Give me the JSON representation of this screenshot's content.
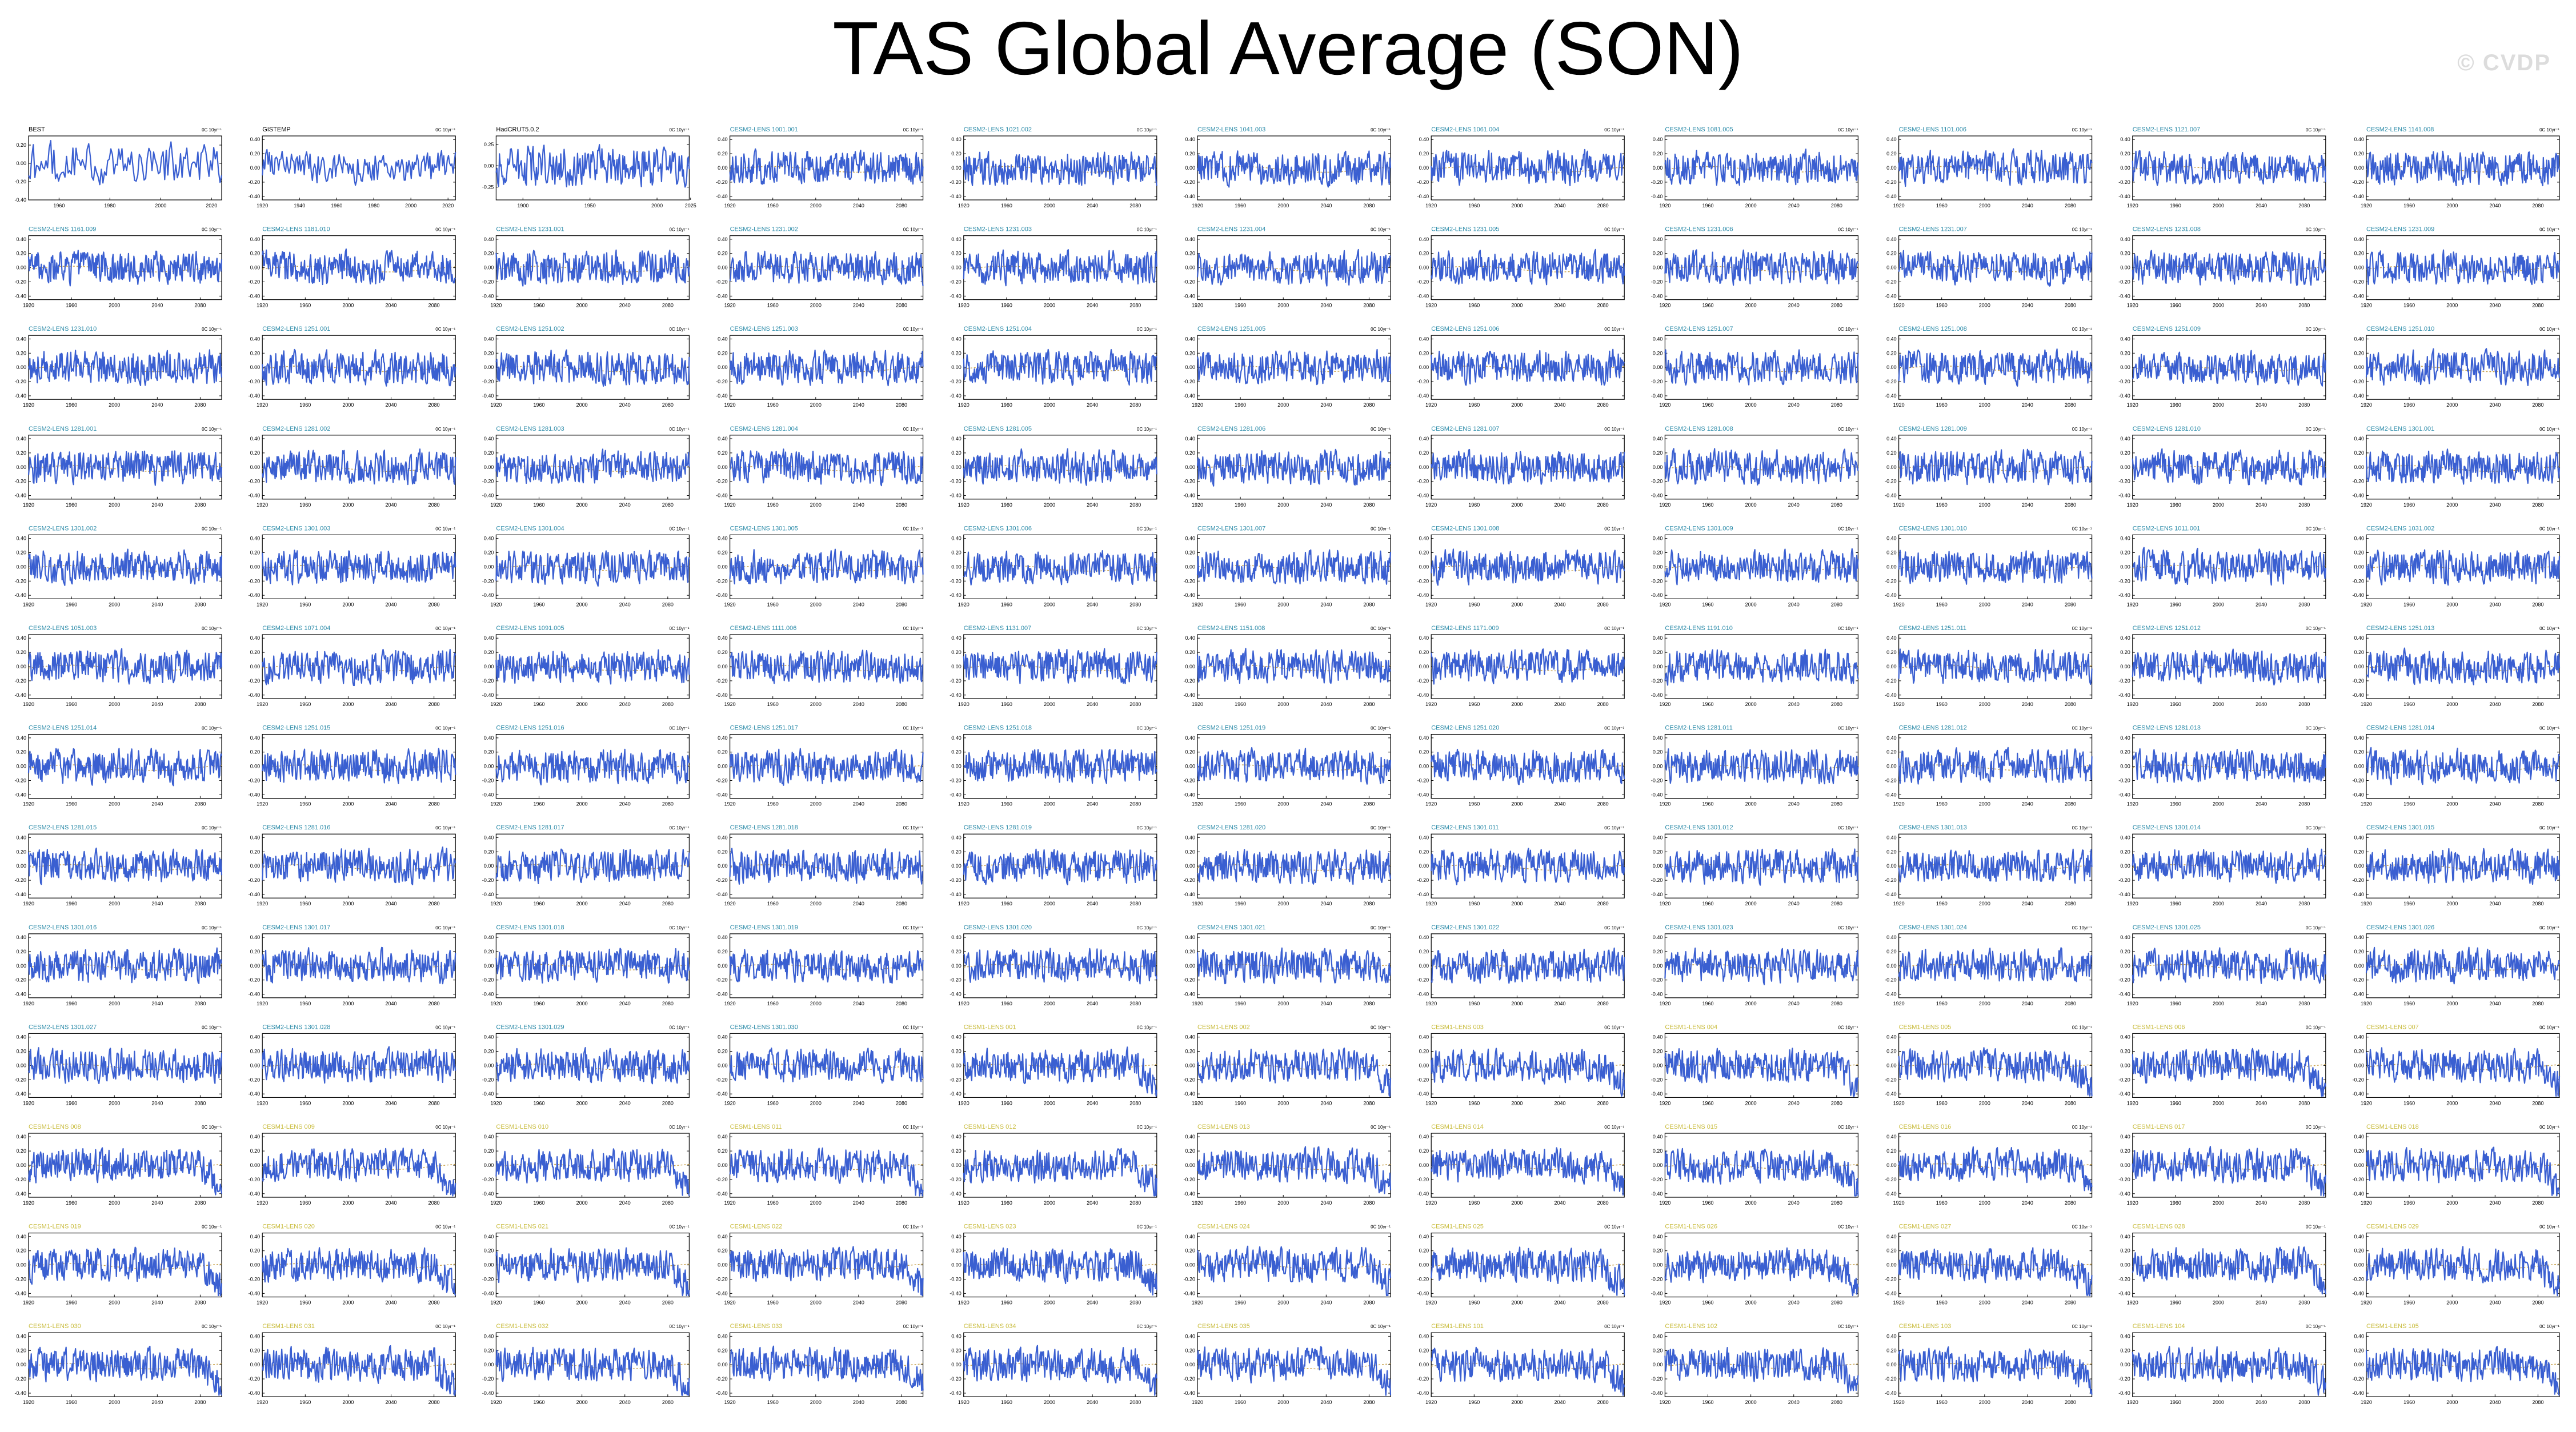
{
  "title": "TAS Global Average (SON)",
  "watermark": "© CVDP",
  "colors": {
    "line": "#3a5fd1",
    "trend": "#c8a14a",
    "frame": "#000000",
    "obs_label": "#000000",
    "lens_label": "#2a8aa8",
    "lens1_label": "#c8bb3a"
  },
  "chart_data": {
    "type": "line",
    "panel_unit": "0C 10yr⁻¹",
    "panels": [
      {
        "name": "BEST",
        "y_ticks": [
          -0.4,
          -0.2,
          0.0,
          0.2
        ],
        "x_ticks": [
          1960,
          1980,
          2000,
          2020
        ],
        "xlim": [
          1948,
          2024
        ],
        "ylim": [
          -0.4,
          0.3
        ],
        "label_color": "obs_label",
        "trend": false
      },
      {
        "name": "GISTEMP",
        "y_ticks": [
          -0.4,
          -0.2,
          0.0,
          0.2,
          0.4
        ],
        "x_ticks": [
          1920,
          1940,
          1960,
          1980,
          2000,
          2020
        ],
        "xlim": [
          1920,
          2024
        ],
        "ylim": [
          -0.45,
          0.45
        ],
        "label_color": "obs_label",
        "trend": false
      },
      {
        "name": "HadCRUT5.0.2",
        "y_ticks": [
          -0.25,
          0.0,
          0.25
        ],
        "x_ticks": [
          1900,
          1950,
          2000,
          2025
        ],
        "xlim": [
          1880,
          2024
        ],
        "ylim": [
          -0.4,
          0.35
        ],
        "label_color": "obs_label",
        "trend": false
      },
      {
        "name": "CESM2-LENS 1001.001"
      },
      {
        "name": "CESM2-LENS 1021.002"
      },
      {
        "name": "CESM2-LENS 1041.003"
      },
      {
        "name": "CESM2-LENS 1061.004"
      },
      {
        "name": "CESM2-LENS 1081.005"
      },
      {
        "name": "CESM2-LENS 1101.006"
      },
      {
        "name": "CESM2-LENS 1121.007"
      },
      {
        "name": "CESM2-LENS 1141.008"
      },
      {
        "name": "CESM2-LENS 1161.009"
      },
      {
        "name": "CESM2-LENS 1181.010"
      },
      {
        "name": "CESM2-LENS 1231.001"
      },
      {
        "name": "CESM2-LENS 1231.002"
      },
      {
        "name": "CESM2-LENS 1231.003"
      },
      {
        "name": "CESM2-LENS 1231.004"
      },
      {
        "name": "CESM2-LENS 1231.005"
      },
      {
        "name": "CESM2-LENS 1231.006"
      },
      {
        "name": "CESM2-LENS 1231.007"
      },
      {
        "name": "CESM2-LENS 1231.008"
      },
      {
        "name": "CESM2-LENS 1231.009"
      },
      {
        "name": "CESM2-LENS 1231.010"
      },
      {
        "name": "CESM2-LENS 1251.001"
      },
      {
        "name": "CESM2-LENS 1251.002"
      },
      {
        "name": "CESM2-LENS 1251.003"
      },
      {
        "name": "CESM2-LENS 1251.004"
      },
      {
        "name": "CESM2-LENS 1251.005"
      },
      {
        "name": "CESM2-LENS 1251.006"
      },
      {
        "name": "CESM2-LENS 1251.007"
      },
      {
        "name": "CESM2-LENS 1251.008"
      },
      {
        "name": "CESM2-LENS 1251.009"
      },
      {
        "name": "CESM2-LENS 1251.010"
      },
      {
        "name": "CESM2-LENS 1281.001"
      },
      {
        "name": "CESM2-LENS 1281.002"
      },
      {
        "name": "CESM2-LENS 1281.003"
      },
      {
        "name": "CESM2-LENS 1281.004"
      },
      {
        "name": "CESM2-LENS 1281.005"
      },
      {
        "name": "CESM2-LENS 1281.006"
      },
      {
        "name": "CESM2-LENS 1281.007"
      },
      {
        "name": "CESM2-LENS 1281.008"
      },
      {
        "name": "CESM2-LENS 1281.009"
      },
      {
        "name": "CESM2-LENS 1281.010"
      },
      {
        "name": "CESM2-LENS 1301.001"
      },
      {
        "name": "CESM2-LENS 1301.002"
      },
      {
        "name": "CESM2-LENS 1301.003"
      },
      {
        "name": "CESM2-LENS 1301.004"
      },
      {
        "name": "CESM2-LENS 1301.005"
      },
      {
        "name": "CESM2-LENS 1301.006"
      },
      {
        "name": "CESM2-LENS 1301.007"
      },
      {
        "name": "CESM2-LENS 1301.008"
      },
      {
        "name": "CESM2-LENS 1301.009"
      },
      {
        "name": "CESM2-LENS 1301.010"
      },
      {
        "name": "CESM2-LENS 1011.001"
      },
      {
        "name": "CESM2-LENS 1031.002"
      },
      {
        "name": "CESM2-LENS 1051.003"
      },
      {
        "name": "CESM2-LENS 1071.004"
      },
      {
        "name": "CESM2-LENS 1091.005"
      },
      {
        "name": "CESM2-LENS 1111.006"
      },
      {
        "name": "CESM2-LENS 1131.007"
      },
      {
        "name": "CESM2-LENS 1151.008"
      },
      {
        "name": "CESM2-LENS 1171.009"
      },
      {
        "name": "CESM2-LENS 1191.010"
      },
      {
        "name": "CESM2-LENS 1251.011"
      },
      {
        "name": "CESM2-LENS 1251.012"
      },
      {
        "name": "CESM2-LENS 1251.013"
      },
      {
        "name": "CESM2-LENS 1251.014"
      },
      {
        "name": "CESM2-LENS 1251.015"
      },
      {
        "name": "CESM2-LENS 1251.016"
      },
      {
        "name": "CESM2-LENS 1251.017"
      },
      {
        "name": "CESM2-LENS 1251.018"
      },
      {
        "name": "CESM2-LENS 1251.019"
      },
      {
        "name": "CESM2-LENS 1251.020"
      },
      {
        "name": "CESM2-LENS 1281.011"
      },
      {
        "name": "CESM2-LENS 1281.012"
      },
      {
        "name": "CESM2-LENS 1281.013"
      },
      {
        "name": "CESM2-LENS 1281.014"
      },
      {
        "name": "CESM2-LENS 1281.015"
      },
      {
        "name": "CESM2-LENS 1281.016"
      },
      {
        "name": "CESM2-LENS 1281.017"
      },
      {
        "name": "CESM2-LENS 1281.018"
      },
      {
        "name": "CESM2-LENS 1281.019"
      },
      {
        "name": "CESM2-LENS 1281.020"
      },
      {
        "name": "CESM2-LENS 1301.011"
      },
      {
        "name": "CESM2-LENS 1301.012"
      },
      {
        "name": "CESM2-LENS 1301.013"
      },
      {
        "name": "CESM2-LENS 1301.014"
      },
      {
        "name": "CESM2-LENS 1301.015"
      },
      {
        "name": "CESM2-LENS 1301.016"
      },
      {
        "name": "CESM2-LENS 1301.017"
      },
      {
        "name": "CESM2-LENS 1301.018"
      },
      {
        "name": "CESM2-LENS 1301.019"
      },
      {
        "name": "CESM2-LENS 1301.020"
      },
      {
        "name": "CESM2-LENS 1301.021"
      },
      {
        "name": "CESM2-LENS 1301.022"
      },
      {
        "name": "CESM2-LENS 1301.023"
      },
      {
        "name": "CESM2-LENS 1301.024"
      },
      {
        "name": "CESM2-LENS 1301.025"
      },
      {
        "name": "CESM2-LENS 1301.026"
      },
      {
        "name": "CESM2-LENS 1301.027"
      },
      {
        "name": "CESM2-LENS 1301.028"
      },
      {
        "name": "CESM2-LENS 1301.029"
      },
      {
        "name": "CESM2-LENS 1301.030"
      },
      {
        "name": "CESM1-LENS 001"
      },
      {
        "name": "CESM1-LENS 002"
      },
      {
        "name": "CESM1-LENS 003"
      },
      {
        "name": "CESM1-LENS 004"
      },
      {
        "name": "CESM1-LENS 005"
      },
      {
        "name": "CESM1-LENS 006"
      },
      {
        "name": "CESM1-LENS 007"
      },
      {
        "name": "CESM1-LENS 008"
      },
      {
        "name": "CESM1-LENS 009"
      },
      {
        "name": "CESM1-LENS 010"
      },
      {
        "name": "CESM1-LENS 011"
      },
      {
        "name": "CESM1-LENS 012"
      },
      {
        "name": "CESM1-LENS 013"
      },
      {
        "name": "CESM1-LENS 014"
      },
      {
        "name": "CESM1-LENS 015"
      },
      {
        "name": "CESM1-LENS 016"
      },
      {
        "name": "CESM1-LENS 017"
      },
      {
        "name": "CESM1-LENS 018"
      },
      {
        "name": "CESM1-LENS 019"
      },
      {
        "name": "CESM1-LENS 020"
      },
      {
        "name": "CESM1-LENS 021"
      },
      {
        "name": "CESM1-LENS 022"
      },
      {
        "name": "CESM1-LENS 023"
      },
      {
        "name": "CESM1-LENS 024"
      },
      {
        "name": "CESM1-LENS 025"
      },
      {
        "name": "CESM1-LENS 026"
      },
      {
        "name": "CESM1-LENS 027"
      },
      {
        "name": "CESM1-LENS 028"
      },
      {
        "name": "CESM1-LENS 029"
      },
      {
        "name": "CESM1-LENS 030"
      },
      {
        "name": "CESM1-LENS 031"
      },
      {
        "name": "CESM1-LENS 032"
      },
      {
        "name": "CESM1-LENS 033"
      },
      {
        "name": "CESM1-LENS 034"
      },
      {
        "name": "CESM1-LENS 035"
      },
      {
        "name": "CESM1-LENS 101"
      },
      {
        "name": "CESM1-LENS 102"
      },
      {
        "name": "CESM1-LENS 103"
      },
      {
        "name": "CESM1-LENS 104"
      },
      {
        "name": "CESM1-LENS 105"
      }
    ],
    "model_defaults": {
      "cesm2": {
        "y_ticks": [
          -0.4,
          -0.2,
          0.0,
          0.2,
          0.4
        ],
        "x_ticks": [
          1920,
          1960,
          2000,
          2040,
          2080
        ],
        "xlim": [
          1920,
          2100
        ],
        "ylim": [
          -0.45,
          0.45
        ],
        "label_color": "lens_label",
        "trend": true
      },
      "cesm1": {
        "y_ticks": [
          -0.4,
          -0.2,
          0.0,
          0.2,
          0.4
        ],
        "x_ticks": [
          1920,
          1960,
          2000,
          2040,
          2080
        ],
        "xlim": [
          1920,
          2100
        ],
        "ylim": [
          -0.45,
          0.45
        ],
        "label_color": "lens1_label",
        "trend": true
      }
    }
  }
}
